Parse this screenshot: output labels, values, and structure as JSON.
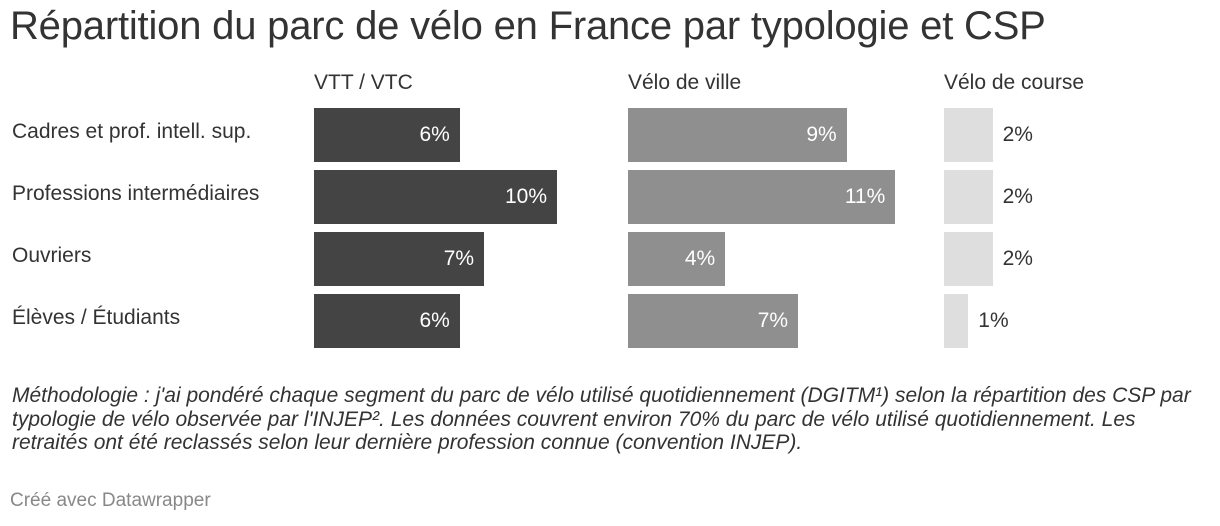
{
  "title": "Répartition du parc de vélo en France par typologie et CSP",
  "chart_data": {
    "type": "bar",
    "categories": [
      "Cadres et prof. intell. sup.",
      "Professions intermédiaires",
      "Ouvriers",
      "Élèves / Étudiants"
    ],
    "series": [
      {
        "name": "VTT / VTC",
        "values": [
          6,
          10,
          7,
          6
        ],
        "labels": [
          "6%",
          "10%",
          "7%",
          "6%"
        ],
        "color": "#444444",
        "label_color": "#ffffff"
      },
      {
        "name": "Vélo de ville",
        "values": [
          9,
          11,
          4,
          7
        ],
        "labels": [
          "9%",
          "11%",
          "4%",
          "7%"
        ],
        "color": "#8f8f8f",
        "label_color": "#ffffff"
      },
      {
        "name": "Vélo de course",
        "values": [
          2,
          2,
          2,
          1
        ],
        "labels": [
          "2%",
          "2%",
          "2%",
          "1%"
        ],
        "color": "#dedede",
        "label_color": "#333333"
      }
    ],
    "unit": "%"
  },
  "notes": "Méthodologie : j'ai pondéré chaque segment du parc de vélo utilisé quotidiennement (DGITM¹) selon la répartition des CSP par typologie de vélo observée par l'INJEP². Les données couvrent environ 70% du parc de vélo utilisé quotidiennement. Les retraités ont été reclassés selon leur dernière profession connue (convention INJEP).",
  "credit": "Créé avec Datawrapper"
}
